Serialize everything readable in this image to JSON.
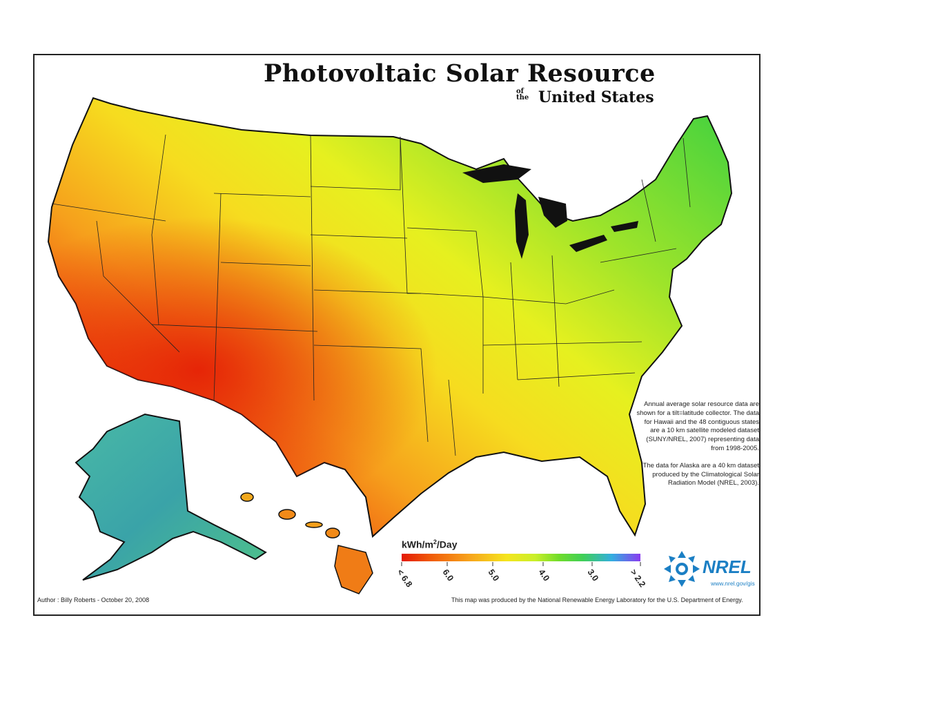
{
  "title": "Photovoltaic Solar Resource",
  "subtitle_of": "of",
  "subtitle_the": "the",
  "subtitle_main": "United States",
  "note_paragraph_1": "Annual average solar resource data are shown for a tilt=latitude collector. The data for Hawaii and the 48 contiguous states are a 10 km satellite modeled dataset (SUNY/NREL, 2007) representing data from 1998-2005.",
  "note_paragraph_2": "The data for Alaska are a 40 km dataset produced by the Climatological Solar Radiation Model (NREL, 2003).",
  "legend": {
    "unit_main": "kWh/m",
    "unit_sup": "2",
    "unit_tail": "/Day",
    "ticks": [
      "< 6.8",
      "6.0",
      "5.0",
      "4.0",
      "3.0",
      "> 2.2"
    ],
    "colors": [
      "#e41a05",
      "#f7a21c",
      "#f5e51e",
      "#6fdc2b",
      "#33aee0",
      "#8a3bf0"
    ]
  },
  "author": "Author : Billy Roberts - October 20, 2008",
  "credit": "This map was produced by the National Renewable Energy Laboratory for the U.S. Department of Energy.",
  "logo": {
    "text": "NREL",
    "url": "www.nrel.gov/gis"
  },
  "map_colors": {
    "southwest": "#e8320c",
    "west": "#f58a18",
    "plains": "#f6c522",
    "southeast": "#f2ec1f",
    "northeast": "#7fdc2a",
    "great_lakes": "#5fd93a",
    "alaska": "#3aa99a",
    "hawaii": "#f09a1c"
  }
}
